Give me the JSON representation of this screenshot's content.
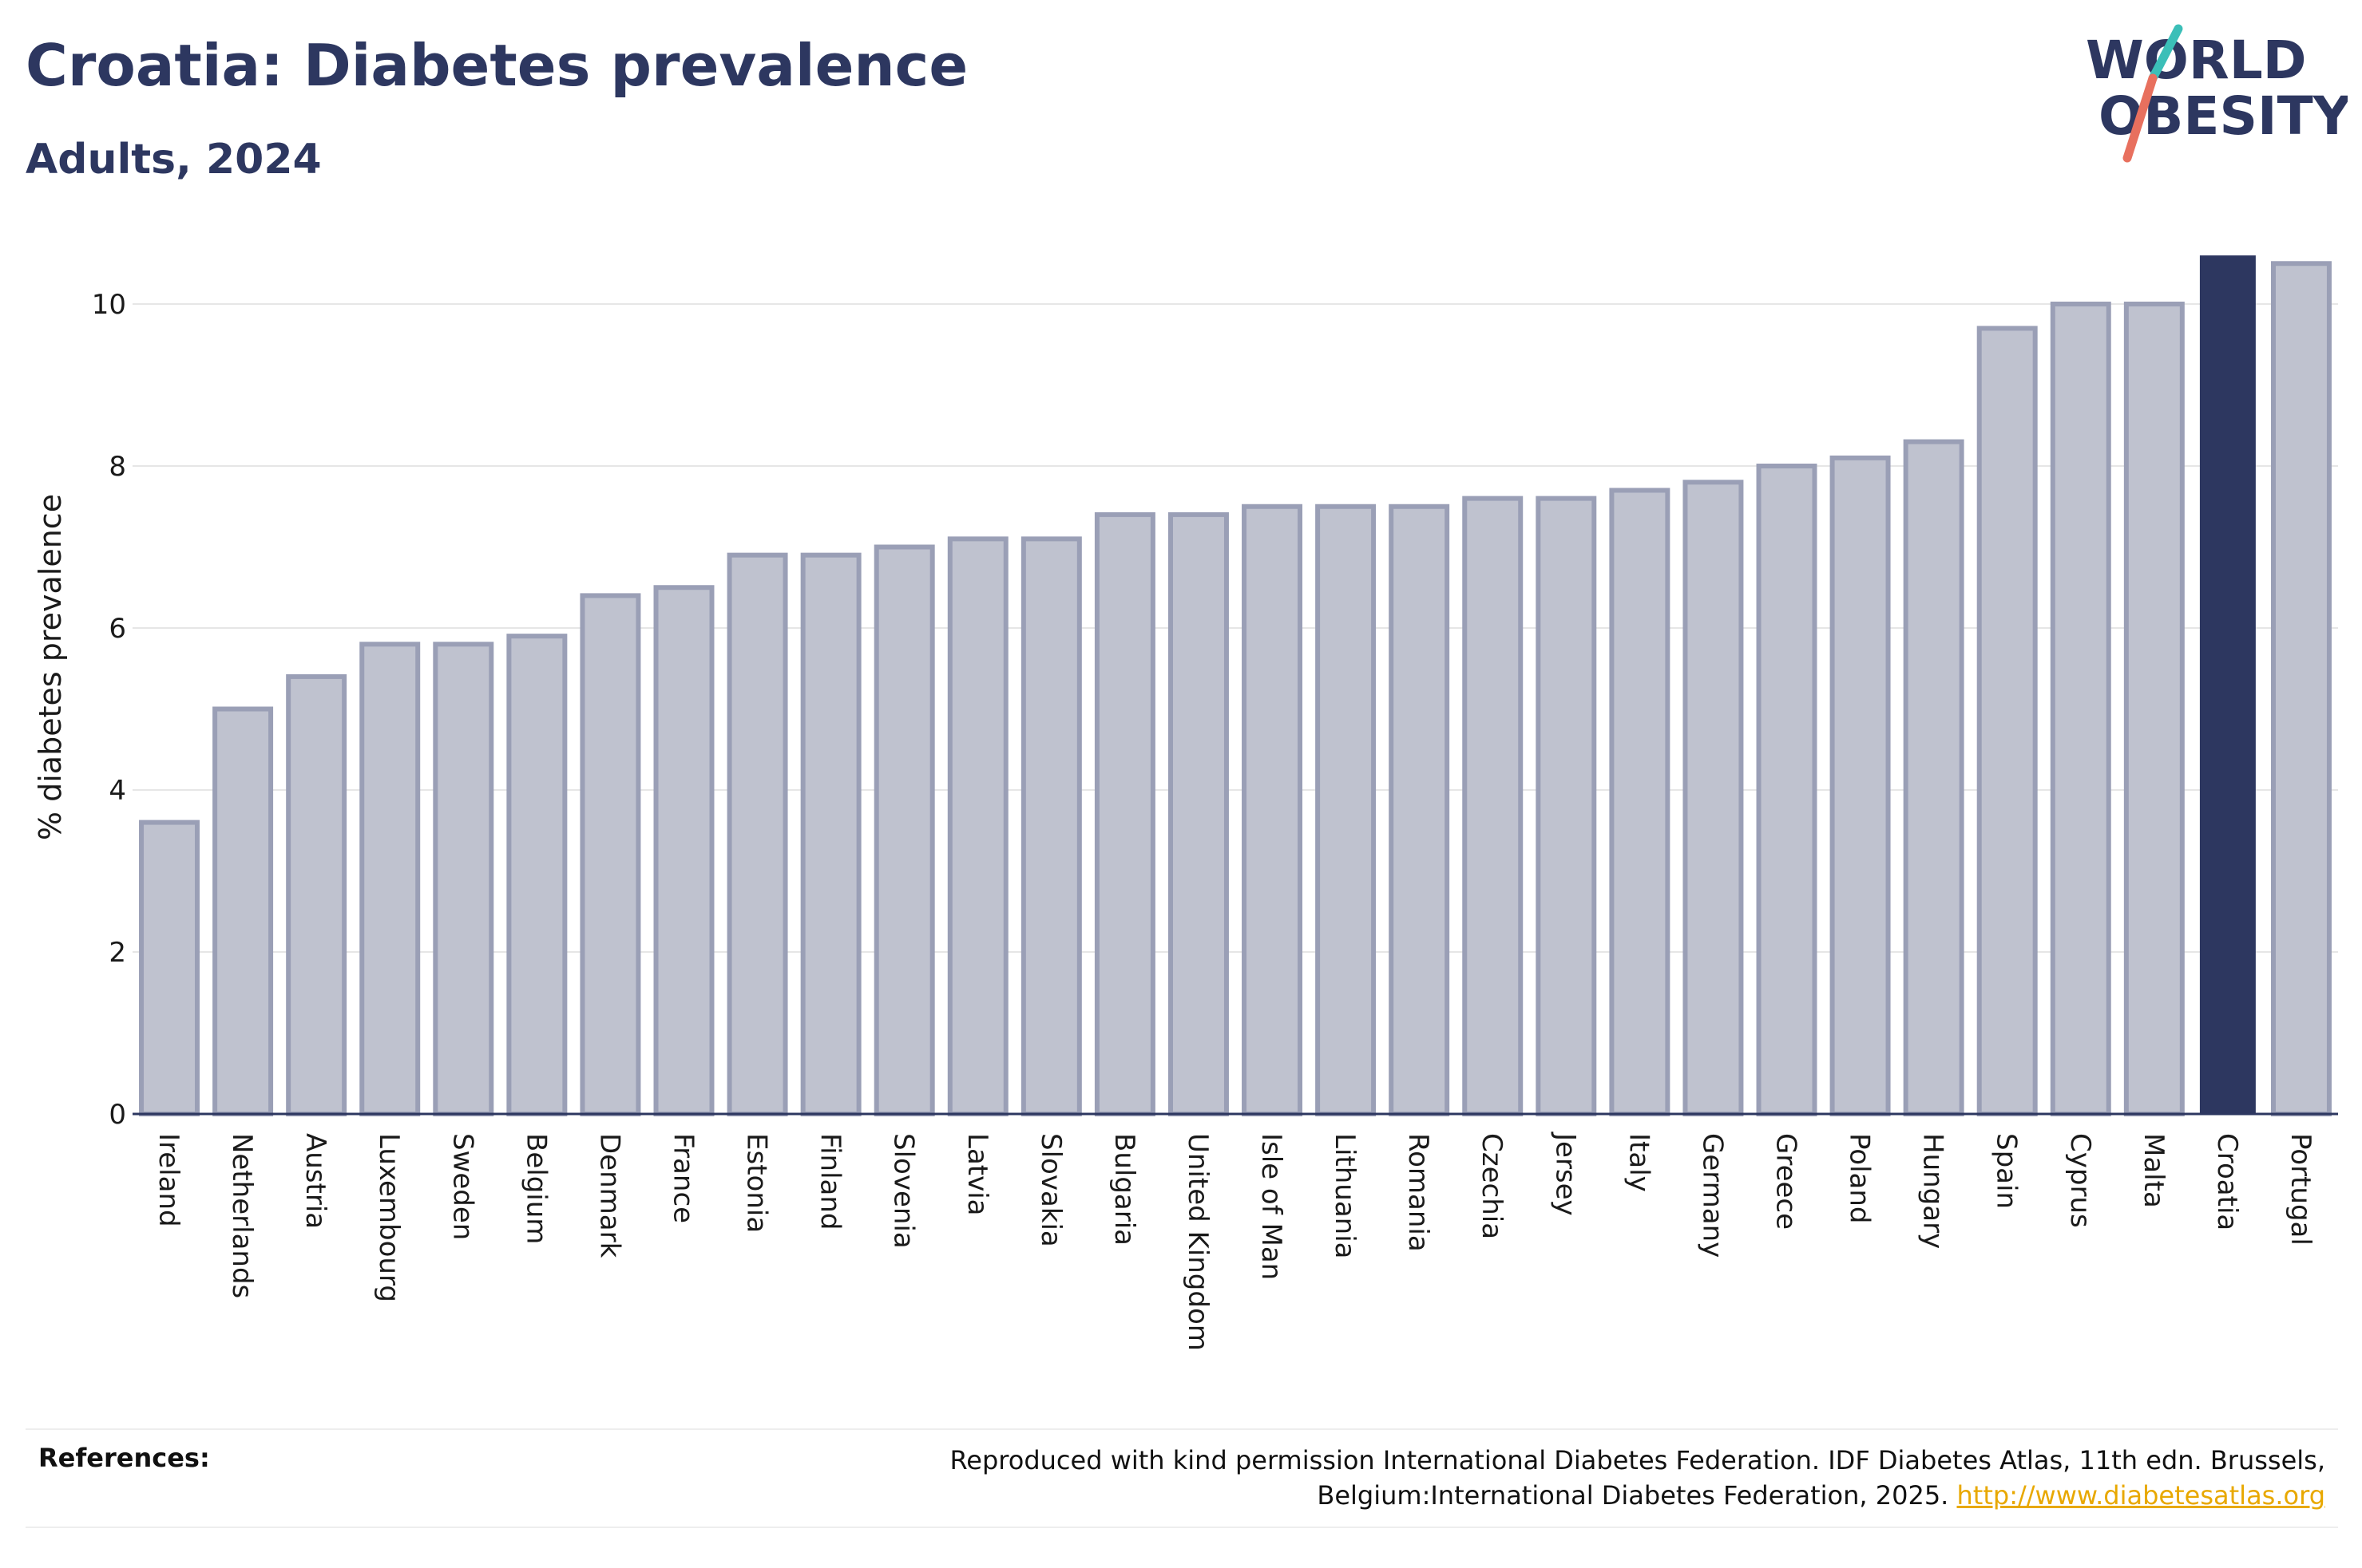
{
  "header": {
    "title": "Croatia: Diabetes prevalence",
    "subtitle": "Adults, 2024"
  },
  "logo": {
    "line1": "WORLD",
    "line2": "OBESITY",
    "slash_teal": "#3bbfb8",
    "slash_coral": "#e8705e"
  },
  "colors": {
    "bar_fill": "#bfc2cf",
    "bar_stroke": "#9a9fb6",
    "highlight": "#2d3760",
    "grid": "#e6e6e6",
    "axis": "#2d3760"
  },
  "chart_data": {
    "type": "bar",
    "title": "Croatia: Diabetes prevalence",
    "subtitle": "Adults, 2024",
    "xlabel": "",
    "ylabel": "% diabetes prevalence",
    "ylim": [
      0,
      10.6
    ],
    "yticks": [
      0,
      2,
      4,
      6,
      8,
      10
    ],
    "grid": true,
    "highlight_category": "Croatia",
    "categories": [
      "Ireland",
      "Netherlands",
      "Austria",
      "Luxembourg",
      "Sweden",
      "Belgium",
      "Denmark",
      "France",
      "Estonia",
      "Finland",
      "Slovenia",
      "Latvia",
      "Slovakia",
      "Bulgaria",
      "United Kingdom",
      "Isle of Man",
      "Lithuania",
      "Romania",
      "Czechia",
      "Jersey",
      "Italy",
      "Germany",
      "Greece",
      "Poland",
      "Hungary",
      "Spain",
      "Cyprus",
      "Malta",
      "Croatia",
      "Portugal"
    ],
    "values": [
      3.6,
      5.0,
      5.4,
      5.8,
      5.8,
      5.9,
      6.4,
      6.5,
      6.9,
      6.9,
      7.0,
      7.1,
      7.1,
      7.4,
      7.4,
      7.5,
      7.5,
      7.5,
      7.6,
      7.6,
      7.7,
      7.8,
      8.0,
      8.1,
      8.3,
      9.7,
      10.0,
      10.0,
      10.6,
      10.5
    ]
  },
  "references": {
    "label": "References:",
    "text": "Reproduced with kind permission International Diabetes Federation. IDF Diabetes Atlas, 11th edn. Brussels, Belgium:International Diabetes Federation, 2025.",
    "link_text": "http://www.diabetesatlas.org"
  }
}
